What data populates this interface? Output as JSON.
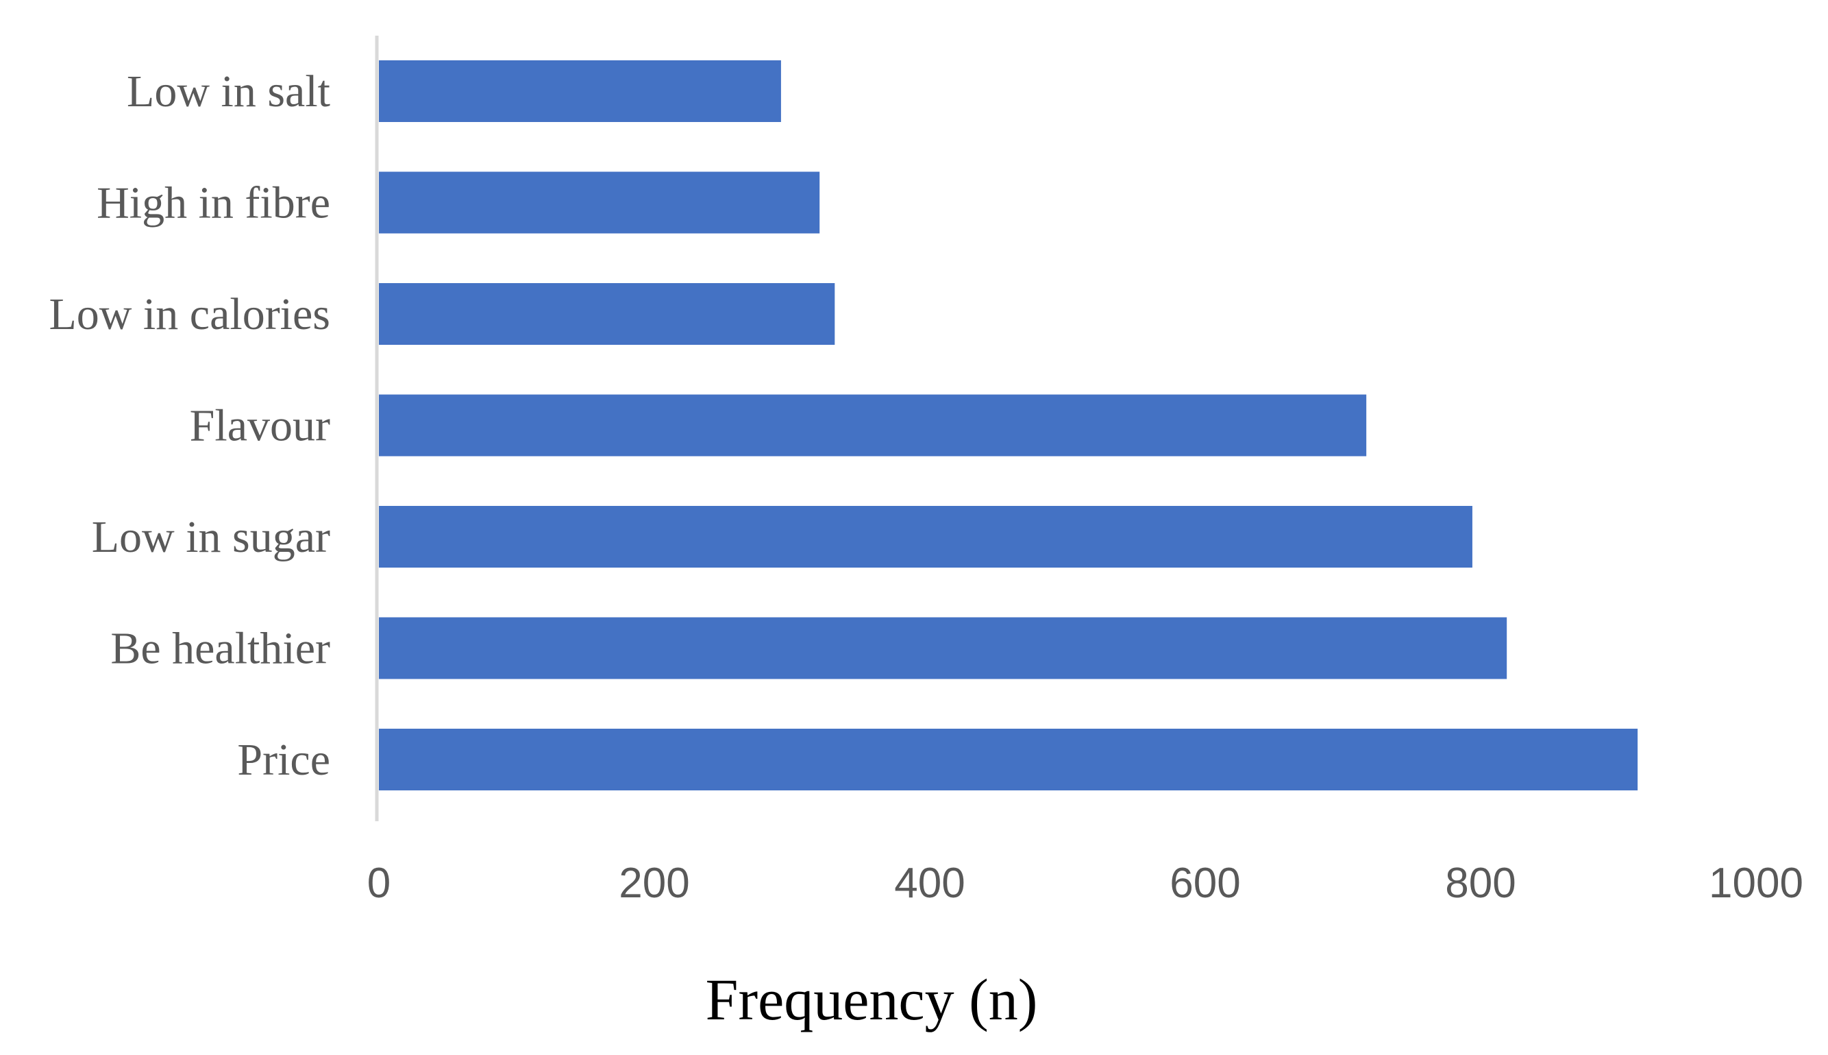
{
  "chart_data": {
    "type": "bar",
    "orientation": "horizontal",
    "categories": [
      "Low in salt",
      "High in fibre",
      "Low in calories",
      "Flavour",
      "Low in sugar",
      "Be healthier",
      "Price"
    ],
    "values": [
      292,
      320,
      331,
      717,
      794,
      819,
      914
    ],
    "xlabel": "Frequency (n)",
    "ylabel": "",
    "xlim": [
      0,
      1000
    ],
    "xticks": [
      "0",
      "200",
      "400",
      "600",
      "800",
      "1000"
    ],
    "grid": false,
    "legend": "none",
    "bar_color": "#4472C4",
    "axis_color": "#D9D9D9"
  }
}
